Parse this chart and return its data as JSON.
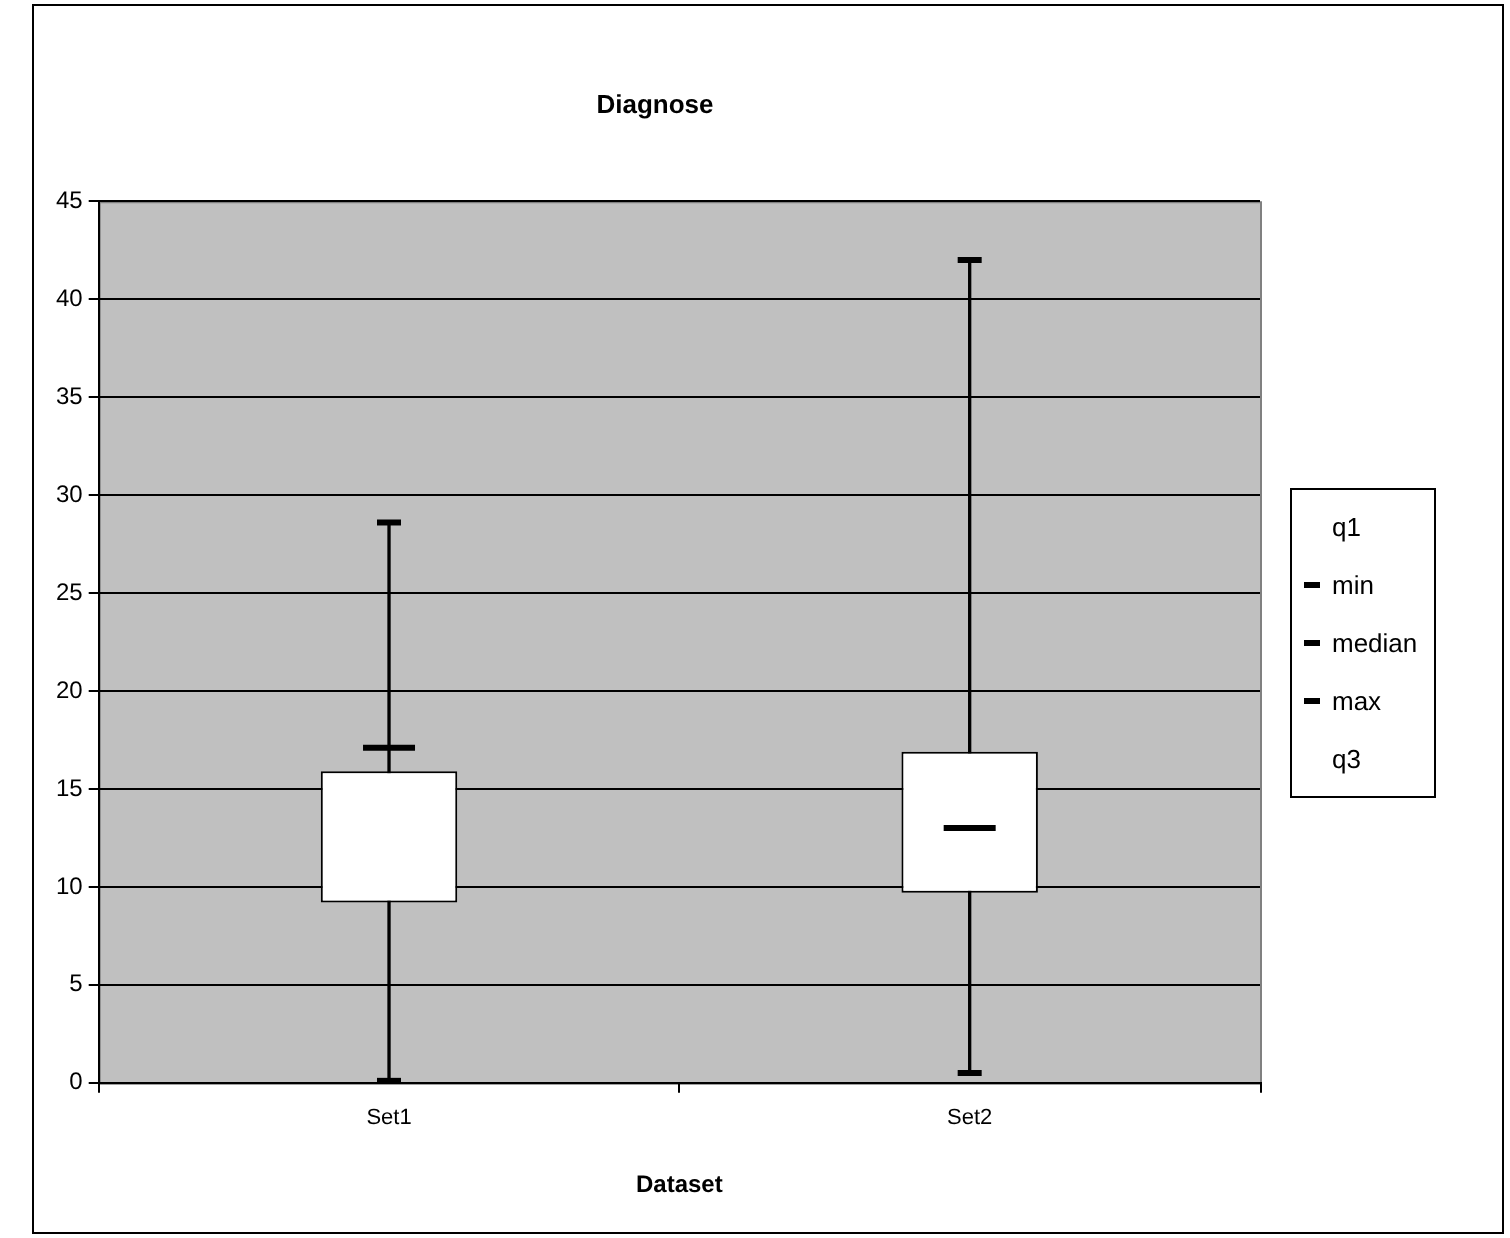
{
  "chart_data": {
    "type": "box",
    "title": "Diagnose",
    "xlabel": "Dataset",
    "categories": [
      "Set1",
      "Set2"
    ],
    "boxes": [
      {
        "low": 0.1,
        "q1": 9.2,
        "median": 17.1,
        "q3": 15.9,
        "high": 28.6
      },
      {
        "low": 0.5,
        "q1": 9.7,
        "median": 13,
        "q3": 16.9,
        "high": 42
      }
    ],
    "annotations": [
      "q1",
      "min",
      "median",
      "max",
      "q3"
    ],
    "ylim": [
      0,
      45
    ],
    "yticks": [
      0,
      5,
      10,
      15,
      20,
      25,
      30,
      35,
      40,
      45
    ],
    "grid": "y"
  }
}
